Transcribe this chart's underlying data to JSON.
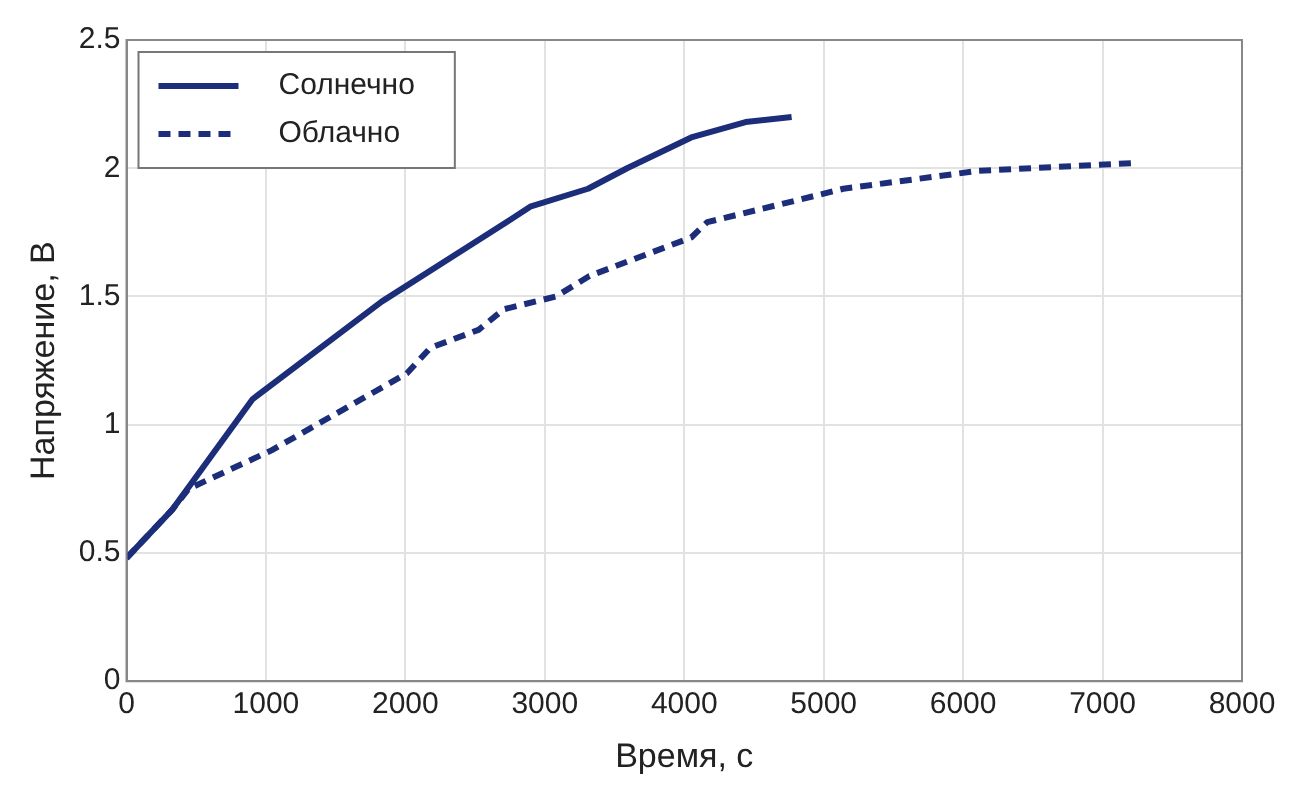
{
  "chart_data": {
    "type": "line",
    "xlabel": "Время, с",
    "ylabel": "Напряжение, В",
    "xlim": [
      0,
      8000
    ],
    "xticks": [
      0,
      1000,
      2000,
      3000,
      4000,
      5000,
      6000,
      7000,
      8000
    ],
    "ylim": [
      0,
      2.5
    ],
    "yticks": [
      0,
      0.5,
      1,
      1.5,
      2,
      2.5
    ],
    "grid": true,
    "legend": "top left",
    "series": [
      {
        "name": "Солнечно",
        "color": "#1c2d7a",
        "line_style": "solid",
        "x": [
          0,
          330,
          905,
          1830,
          2755,
          2895,
          3310,
          3590,
          4050,
          4440,
          4770
        ],
        "values": [
          0.48,
          0.67,
          1.1,
          1.48,
          1.8,
          1.85,
          1.92,
          2.0,
          2.12,
          2.18,
          2.2
        ]
      },
      {
        "name": "Облачно",
        "color": "#1c2d7a",
        "line_style": "dashed",
        "x": [
          0,
          330,
          445,
          1040,
          2010,
          2180,
          2525,
          2705,
          3080,
          3320,
          4050,
          4165,
          4770,
          5140,
          6110,
          7210
        ],
        "values": [
          0.48,
          0.67,
          0.75,
          0.9,
          1.2,
          1.3,
          1.37,
          1.45,
          1.5,
          1.58,
          1.73,
          1.79,
          1.87,
          1.92,
          1.99,
          2.02
        ]
      }
    ]
  }
}
